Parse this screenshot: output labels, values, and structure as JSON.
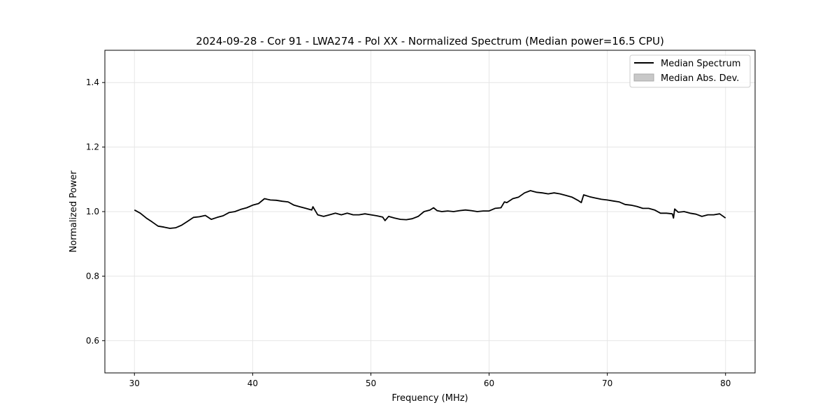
{
  "chart_data": {
    "type": "line",
    "title": "2024-09-28 - Cor 91 - LWA274 - Pol XX - Normalized Spectrum (Median power=16.5 CPU)",
    "xlabel": "Frequency (MHz)",
    "ylabel": "Normalized Power",
    "xlim": [
      27.5,
      82.5
    ],
    "ylim": [
      0.5,
      1.5
    ],
    "xticks": [
      30,
      40,
      50,
      60,
      70,
      80
    ],
    "xtick_labels": [
      "30",
      "40",
      "50",
      "60",
      "70",
      "80"
    ],
    "yticks": [
      0.6,
      0.8,
      1.0,
      1.2,
      1.4
    ],
    "ytick_labels": [
      "0.6",
      "0.8",
      "1.0",
      "1.2",
      "1.4"
    ],
    "grid": true,
    "legend_position": "top-right",
    "legend": [
      "Median Spectrum",
      "Median Abs. Dev."
    ],
    "colors": {
      "line": "#000000",
      "mad_fill": "#c8c8c8",
      "grid": "#e6e6e6"
    },
    "series": [
      {
        "name": "Median Spectrum",
        "x": [
          30,
          30.5,
          31,
          31.5,
          32,
          32.5,
          33,
          33.5,
          34,
          34.5,
          35,
          35.5,
          36,
          36.5,
          37,
          37.5,
          38,
          38.5,
          39,
          39.5,
          40,
          40.5,
          41,
          41.5,
          42,
          42.5,
          43,
          43.5,
          44,
          44.5,
          45,
          45.1,
          45.5,
          46,
          46.5,
          47,
          47.5,
          48,
          48.5,
          49,
          49.5,
          50,
          50.5,
          51,
          51.2,
          51.5,
          52,
          52.5,
          53,
          53.5,
          54,
          54.5,
          55,
          55.3,
          55.6,
          56,
          56.5,
          57,
          57.5,
          58,
          58.5,
          59,
          59.5,
          60,
          60.5,
          61,
          61.3,
          61.5,
          62,
          62.5,
          63,
          63.5,
          64,
          64.5,
          65,
          65.5,
          66,
          66.5,
          67,
          67.5,
          67.8,
          68,
          68.5,
          69,
          69.5,
          70,
          70.5,
          71,
          71.5,
          72,
          72.5,
          73,
          73.5,
          74,
          74.5,
          75,
          75.5,
          75.6,
          75.7,
          76,
          76.5,
          77,
          77.5,
          78,
          78.5,
          79,
          79.5,
          80
        ],
        "y": [
          1.005,
          0.995,
          0.98,
          0.968,
          0.955,
          0.952,
          0.948,
          0.95,
          0.958,
          0.97,
          0.982,
          0.984,
          0.988,
          0.976,
          0.982,
          0.987,
          0.997,
          1.0,
          1.007,
          1.012,
          1.02,
          1.025,
          1.04,
          1.036,
          1.035,
          1.032,
          1.03,
          1.02,
          1.015,
          1.01,
          1.005,
          1.015,
          0.99,
          0.985,
          0.99,
          0.995,
          0.99,
          0.995,
          0.99,
          0.99,
          0.993,
          0.99,
          0.987,
          0.983,
          0.972,
          0.985,
          0.98,
          0.976,
          0.975,
          0.978,
          0.985,
          1.0,
          1.005,
          1.012,
          1.003,
          1.0,
          1.002,
          1.0,
          1.003,
          1.005,
          1.003,
          1.0,
          1.002,
          1.002,
          1.01,
          1.012,
          1.03,
          1.028,
          1.04,
          1.045,
          1.058,
          1.065,
          1.06,
          1.058,
          1.055,
          1.058,
          1.055,
          1.05,
          1.045,
          1.035,
          1.028,
          1.052,
          1.046,
          1.042,
          1.038,
          1.036,
          1.033,
          1.03,
          1.022,
          1.02,
          1.016,
          1.01,
          1.01,
          1.005,
          0.995,
          0.995,
          0.993,
          0.98,
          1.008,
          0.998,
          1.0,
          0.995,
          0.992,
          0.985,
          0.99,
          0.99,
          0.993,
          0.98
        ]
      }
    ]
  }
}
